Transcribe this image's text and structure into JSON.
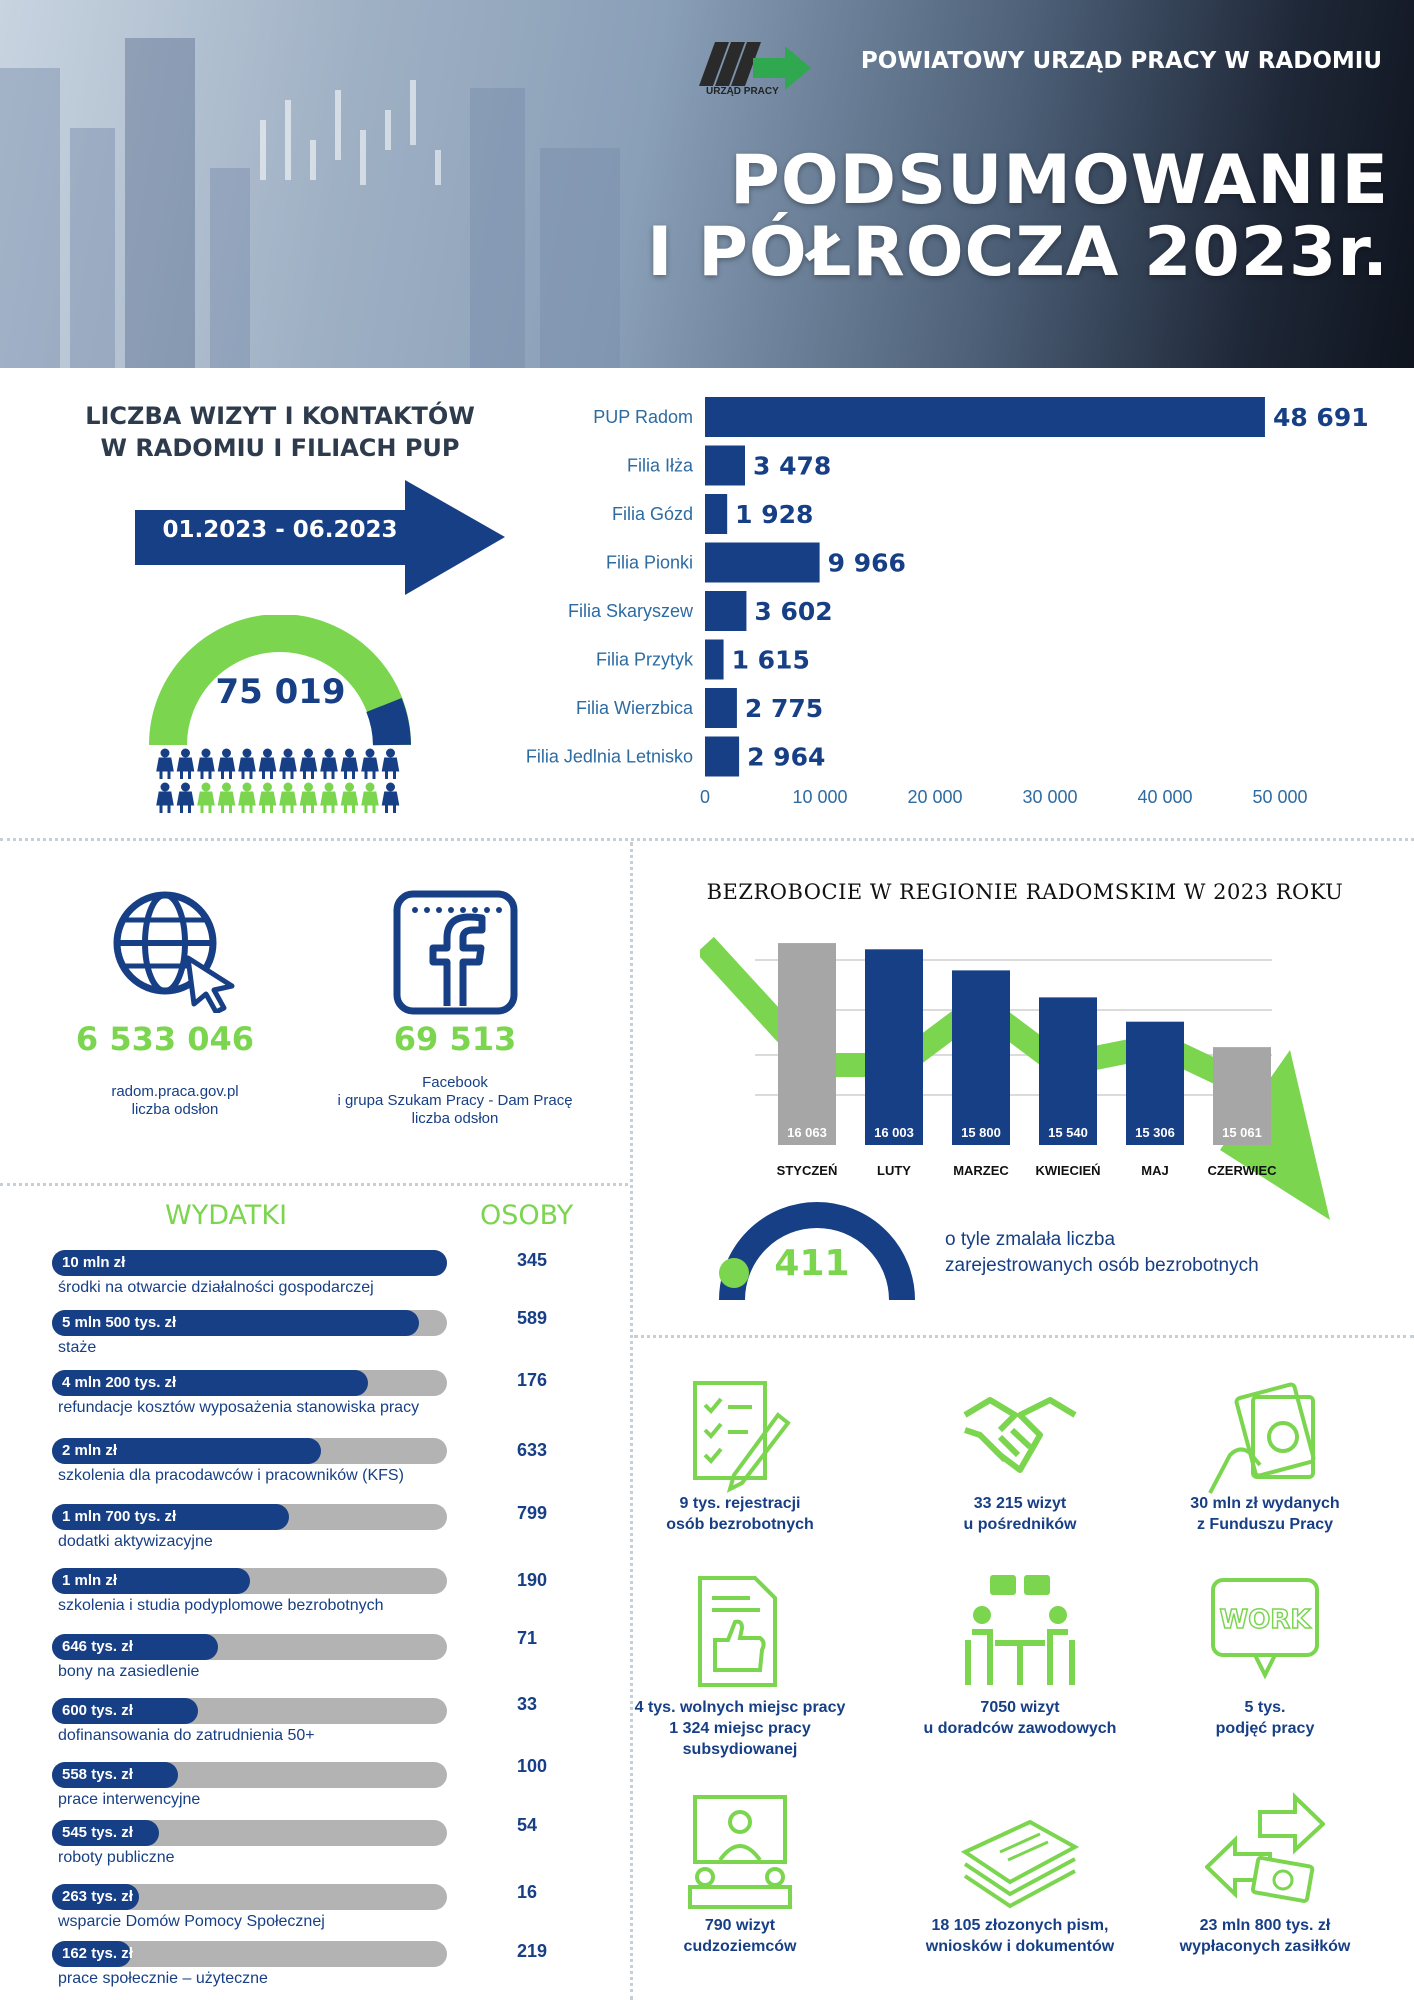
{
  "header": {
    "org": "POWIATOWY URZĄD PRACY W RADOMIU",
    "logo_text": "URZĄD PRACY",
    "title_line1": "PODSUMOWANIE",
    "title_line2": "I PÓŁROCZA 2023r."
  },
  "visits": {
    "title_line1": "LICZBA WIZYT I KONTAKTÓW",
    "title_line2": "W RADOMIU I FILIACH PUP",
    "period": "01.2023 - 06.2023",
    "total": "75 019"
  },
  "chart_data": [
    {
      "type": "bar",
      "orientation": "horizontal",
      "categories": [
        "PUP Radom",
        "Filia Iłża",
        "Filia Gózd",
        "Filia Pionki",
        "Filia Skaryszew",
        "Filia Przytyk",
        "Filia Wierzbica",
        "Filia Jedlnia Letnisko"
      ],
      "values": [
        48691,
        3478,
        1928,
        9966,
        3602,
        1615,
        2775,
        2964
      ],
      "value_labels": [
        "48 691",
        "3 478",
        "1 928",
        "9 966",
        "3 602",
        "1 615",
        "2 775",
        "2 964"
      ],
      "xticks": [
        "0",
        "10 000",
        "20 000",
        "30 000",
        "40 000",
        "50 000"
      ],
      "xlim": [
        0,
        50000
      ],
      "color": "#173f85"
    },
    {
      "type": "bar",
      "title": "BEZROBOCIE W REGIONIE RADOMSKIM W 2023 ROKU",
      "categories": [
        "STYCZEŃ",
        "LUTY",
        "MARZEC",
        "KWIECIEŃ",
        "MAJ",
        "CZERWIEC"
      ],
      "values": [
        16063,
        16003,
        15800,
        15540,
        15306,
        15061
      ],
      "value_labels": [
        "16 063",
        "16 003",
        "15 800",
        "15 540",
        "15 306",
        "15 061"
      ],
      "colors": [
        "#a6a6a6",
        "#173f85",
        "#173f85",
        "#173f85",
        "#173f85",
        "#a6a6a6"
      ],
      "trend_color": "#7bd54f",
      "ylim": [
        14600,
        16160
      ],
      "grid": true
    }
  ],
  "web": {
    "site_count": "6 533 046",
    "site_caption_1": "radom.praca.gov.pl",
    "site_caption_2": "liczba odsłon",
    "fb_count": "69 513",
    "fb_caption_1": "Facebook",
    "fb_caption_2": "i grupa Szukam Pracy - Dam Pracę",
    "fb_caption_3": "liczba odsłon"
  },
  "unemployment": {
    "drop": "411",
    "drop_caption_1": "o tyle zmalała liczba",
    "drop_caption_2": "zarejestrowanych osób bezrobotnych"
  },
  "expenses": {
    "head_left": "WYDATKI",
    "head_right": "OSOBY",
    "rows": [
      {
        "amount": "10 mln zł",
        "desc": "środki na otwarcie działalności gospodarczej",
        "count": "345",
        "fill": 1.0
      },
      {
        "amount": "5 mln 500 tys. zł",
        "desc": "staże",
        "count": "589",
        "fill": 0.93
      },
      {
        "amount": "4 mln 200 tys. zł",
        "desc": "refundacje kosztów wyposażenia stanowiska pracy",
        "count": "176",
        "fill": 0.8
      },
      {
        "amount": "2 mln zł",
        "desc": "szkolenia dla pracodawców i pracowników (KFS)",
        "count": "633",
        "fill": 0.68
      },
      {
        "amount": "1 mln 700 tys. zł",
        "desc": "dodatki aktywizacyjne",
        "count": "799",
        "fill": 0.6
      },
      {
        "amount": "1 mln zł",
        "desc": "szkolenia i studia podyplomowe bezrobotnych",
        "count": "190",
        "fill": 0.5
      },
      {
        "amount": "646 tys. zł",
        "desc": "bony na zasiedlenie",
        "count": "71",
        "fill": 0.42
      },
      {
        "amount": "600 tys. zł",
        "desc": "dofinansowania do zatrudnienia 50+",
        "count": "33",
        "fill": 0.37
      },
      {
        "amount": "558 tys. zł",
        "desc": "prace interwencyjne",
        "count": "100",
        "fill": 0.32
      },
      {
        "amount": "545 tys. zł",
        "desc": "roboty publiczne",
        "count": "54",
        "fill": 0.27
      },
      {
        "amount": "263 tys. zł",
        "desc": "wsparcie Domów Pomocy Społecznej",
        "count": "16",
        "fill": 0.22
      },
      {
        "amount": "162 tys. zł",
        "desc": "prace społecznie – użyteczne",
        "count": "219",
        "fill": 0.2
      }
    ]
  },
  "tiles": [
    {
      "icon": "checklist-pen-icon",
      "line1": "9 tys. rejestracji",
      "line2": "osób bezrobotnych",
      "line3": ""
    },
    {
      "icon": "handshake-icon",
      "line1": "33 215 wizyt",
      "line2": "u pośredników",
      "line3": ""
    },
    {
      "icon": "money-hand-icon",
      "line1": "30 mln zł wydanych",
      "line2": "z Funduszu Pracy",
      "line3": ""
    },
    {
      "icon": "document-thumbs-up-icon",
      "line1": "4 tys. wolnych miejsc pracy",
      "line2": "1 324 miejsc pracy",
      "line3": "subsydiowanej"
    },
    {
      "icon": "counselling-meeting-icon",
      "line1": "7050 wizyt",
      "line2": "u doradców zawodowych",
      "line3": ""
    },
    {
      "icon": "work-sign-icon",
      "line1": "5 tys.",
      "line2": "podjęć pracy",
      "line3": "",
      "badge": "WORK"
    },
    {
      "icon": "foreigners-meeting-icon",
      "line1": "790 wizyt",
      "line2": "cudzoziemców",
      "line3": ""
    },
    {
      "icon": "document-stack-icon",
      "line1": "18 105 złozonych pism,",
      "line2": "wniosków i dokumentów",
      "line3": ""
    },
    {
      "icon": "cash-exchange-icon",
      "line1": "23 mln 800 tys. zł",
      "line2": "wypłaconych zasiłków",
      "line3": ""
    }
  ]
}
